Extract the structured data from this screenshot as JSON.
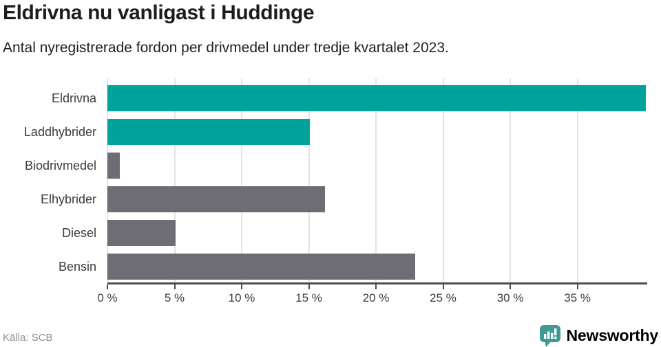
{
  "header": {
    "title": "Eldrivna nu vanligast i Huddinge",
    "subtitle": "Antal nyregistrerade fordon per drivmedel under tredje kvartalet 2023."
  },
  "chart_data": {
    "type": "bar",
    "orientation": "horizontal",
    "title": "Eldrivna nu vanligast i Huddinge",
    "xlabel": "",
    "ylabel": "",
    "unit": "%",
    "categories": [
      "Eldrivna",
      "Laddhybrider",
      "Biodrivmedel",
      "Elhybrider",
      "Diesel",
      "Bensin"
    ],
    "values": [
      40.1,
      15.1,
      0.9,
      16.2,
      5.1,
      22.9
    ],
    "bar_colors": [
      "#00a29b",
      "#00a29b",
      "#6d6d73",
      "#6d6d73",
      "#6d6d73",
      "#6d6d73"
    ],
    "xlim": [
      0,
      40.2
    ],
    "x_ticks": [
      0,
      5,
      10,
      15,
      20,
      25,
      30,
      35
    ],
    "x_tick_labels": [
      "0 %",
      "5 %",
      "10 %",
      "15 %",
      "20 %",
      "25 %",
      "30 %",
      "35 %"
    ],
    "grid": true,
    "legend": false
  },
  "footer": {
    "source": "Källa: SCB",
    "brand": "Newsworthy"
  },
  "colors": {
    "teal": "#00a29b",
    "gray": "#6d6d73",
    "brand_teal": "#42938e",
    "icon_teal": "#3f9a94",
    "gridline": "#e4e4e4",
    "axis": "#4c4c4c"
  }
}
